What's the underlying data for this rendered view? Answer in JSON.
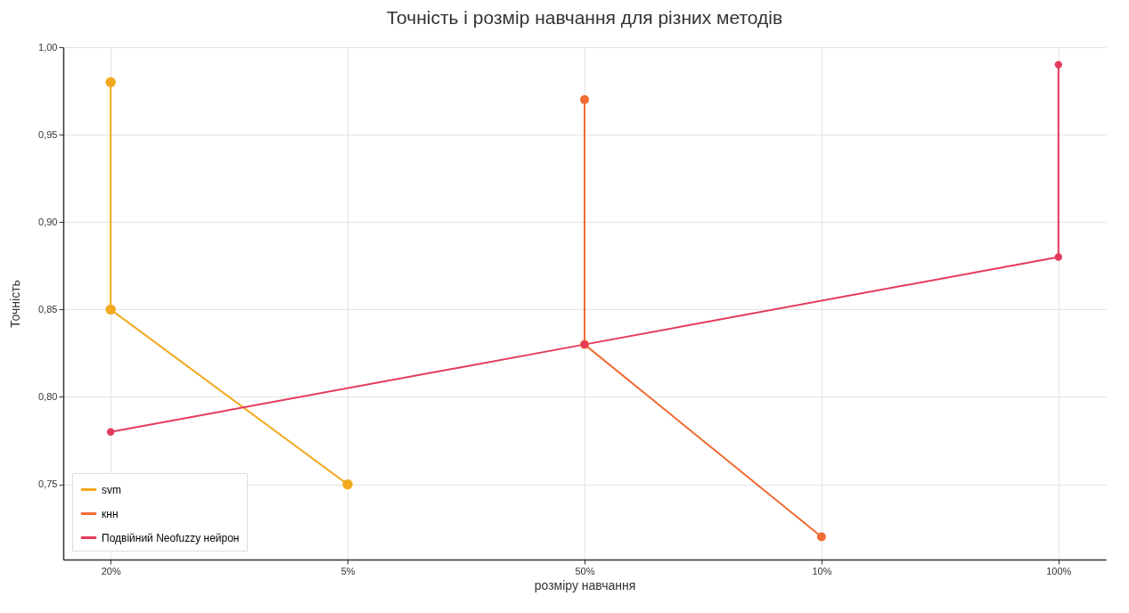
{
  "chart_data": {
    "type": "line",
    "title": "Точність і розмір навчання для різних методів",
    "xlabel": "розміру навчання",
    "ylabel": "Точність",
    "categories": [
      "20%",
      "5%",
      "50%",
      "10%",
      "100%"
    ],
    "series": [
      {
        "name": "svm",
        "color": "#f2a91e",
        "x": [
          "20%",
          "20%",
          "5%"
        ],
        "values": [
          0.98,
          0.85,
          0.75
        ]
      },
      {
        "name": "кнн",
        "color": "#f26b33",
        "x": [
          "50%",
          "50%",
          "10%"
        ],
        "values": [
          0.97,
          0.83,
          0.72
        ]
      },
      {
        "name": "Подвійний Neofuzzy нейрон",
        "color": "#e43a5c",
        "x": [
          "20%",
          "50%",
          "100%",
          "100%"
        ],
        "values": [
          0.78,
          0.83,
          0.88,
          0.99
        ]
      }
    ],
    "ylim": [
      0.707,
      1.0
    ],
    "yticks": [
      {
        "value": 0.75,
        "label": "0,75"
      },
      {
        "value": 0.8,
        "label": "0,80"
      },
      {
        "value": 0.85,
        "label": "0,85"
      },
      {
        "value": 0.9,
        "label": "0,90"
      },
      {
        "value": 0.95,
        "label": "0,95"
      },
      {
        "value": 1.0,
        "label": "1,00"
      }
    ],
    "grid": true,
    "legend": "bottom left",
    "marker": "circle",
    "line_style": "solid"
  }
}
